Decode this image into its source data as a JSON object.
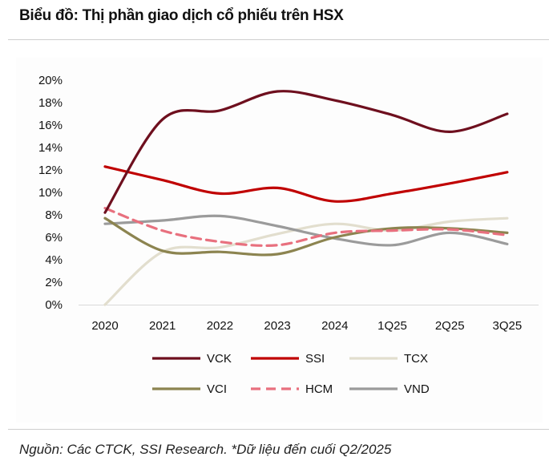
{
  "title": "Biểu đồ: Thị phần giao dịch cổ phiếu trên HSX",
  "footer": "Nguồn: Các CTCK, SSI Research. *Dữ liệu đến cuối Q2/2025",
  "chart_data": {
    "type": "line",
    "categories": [
      "2020",
      "2021",
      "2022",
      "2023",
      "2024",
      "1Q25",
      "2Q25",
      "3Q25"
    ],
    "ylim": [
      0,
      20
    ],
    "yticks": [
      "0%",
      "2%",
      "4%",
      "6%",
      "8%",
      "10%",
      "12%",
      "14%",
      "16%",
      "18%",
      "20%"
    ],
    "grid": false,
    "legend_placement": "bottom",
    "series": [
      {
        "name": "VCK",
        "color": "#6e0f1e",
        "dashed": false,
        "values": [
          8.2,
          16.5,
          17.3,
          19.0,
          18.2,
          16.9,
          15.4,
          17.0
        ]
      },
      {
        "name": "SSI",
        "color": "#c00000",
        "dashed": false,
        "values": [
          12.3,
          11.1,
          9.9,
          10.4,
          9.2,
          9.9,
          10.8,
          11.8
        ]
      },
      {
        "name": "TCX",
        "color": "#e2dece",
        "dashed": false,
        "values": [
          0,
          4.7,
          5.1,
          6.3,
          7.2,
          6.6,
          7.4,
          7.7
        ]
      },
      {
        "name": "VCI",
        "color": "#8c8450",
        "dashed": false,
        "values": [
          7.7,
          4.8,
          4.7,
          4.5,
          6.0,
          6.8,
          6.8,
          6.4
        ]
      },
      {
        "name": "HCM",
        "color": "#e8707e",
        "dashed": true,
        "values": [
          8.6,
          6.6,
          5.6,
          5.3,
          6.4,
          6.6,
          6.7,
          6.2
        ]
      },
      {
        "name": "VND",
        "color": "#9b9b9b",
        "dashed": false,
        "values": [
          7.2,
          7.5,
          7.9,
          7.0,
          5.9,
          5.3,
          6.4,
          5.4
        ]
      }
    ]
  }
}
